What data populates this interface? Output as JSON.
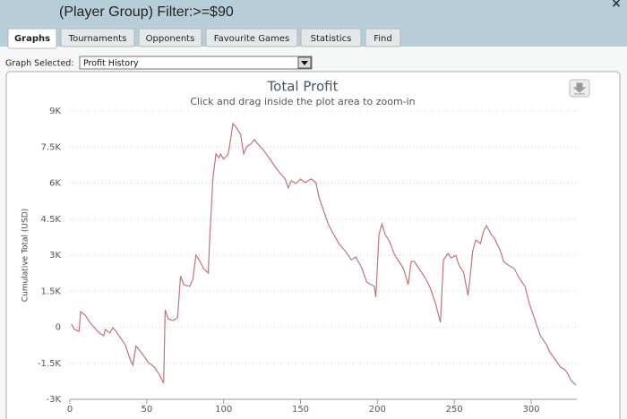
{
  "header": {
    "title": "(Player Group) Filter:>=$90",
    "close": "×"
  },
  "tabs": [
    "Graphs",
    "Tournaments",
    "Opponents",
    "Favourite Games",
    "Statistics",
    "Find"
  ],
  "active_tab": 0,
  "graph_selector": {
    "label": "Graph Selected:",
    "value": "Profit History"
  },
  "chart_data": {
    "type": "line",
    "title": "Total Profit",
    "subtitle": "Click and drag inside the plot area to zoom-in",
    "y_label": "Cumulative Total (USD)",
    "color": "#c0747b",
    "grid": true,
    "xlim": [
      0,
      330
    ],
    "xticks": [
      0,
      50,
      100,
      150,
      200,
      250,
      300
    ],
    "ylim": [
      -3000,
      9000
    ],
    "yticks": [
      {
        "value": -3000,
        "label": "-3K"
      },
      {
        "value": -1500,
        "label": "-1.5K"
      },
      0,
      {
        "value": 1500,
        "label": "1.5K"
      },
      {
        "value": 3000,
        "label": "3K"
      },
      {
        "value": 4500,
        "label": "4.5K"
      },
      {
        "value": 6000,
        "label": "6K"
      },
      {
        "value": 7500,
        "label": "7.5K"
      },
      {
        "value": 9000,
        "label": "9K"
      }
    ],
    "x": [
      1,
      3,
      6,
      7,
      10,
      13,
      16,
      19,
      22,
      23,
      26,
      28,
      30,
      36,
      39,
      41,
      43,
      47,
      51,
      55,
      58,
      61,
      62,
      64,
      67,
      70,
      72,
      74,
      78,
      80,
      82,
      84,
      87,
      90,
      91,
      92,
      93,
      95,
      97,
      98,
      100,
      103,
      105,
      106,
      108,
      111,
      113,
      115,
      118,
      120,
      122,
      126,
      129,
      135,
      140,
      142,
      144,
      147,
      150,
      153,
      157,
      160,
      162,
      164,
      168,
      171,
      175,
      179,
      183,
      186,
      190,
      193,
      198,
      199,
      201,
      203,
      205,
      208,
      211,
      214,
      217,
      220,
      222,
      224,
      227,
      231,
      234,
      238,
      241,
      243,
      246,
      248,
      251,
      253,
      256,
      259,
      262,
      264,
      267,
      269,
      271,
      274,
      276,
      280,
      282,
      285,
      289,
      292,
      296,
      299,
      303,
      306,
      310,
      312,
      315,
      317,
      319,
      322,
      324,
      326,
      329
    ],
    "values": [
      130,
      -90,
      -170,
      650,
      500,
      200,
      -20,
      -240,
      -350,
      -90,
      -240,
      -20,
      -170,
      -730,
      -1290,
      -1580,
      -780,
      -1100,
      -1470,
      -1660,
      -1960,
      -2330,
      730,
      350,
      280,
      390,
      2140,
      1770,
      1700,
      2000,
      3000,
      2810,
      2440,
      2250,
      3740,
      4860,
      6170,
      7210,
      7060,
      7210,
      6990,
      7210,
      8030,
      8480,
      8330,
      8030,
      7210,
      7510,
      7650,
      7810,
      7650,
      7360,
      7100,
      6540,
      6170,
      5800,
      6100,
      5980,
      6170,
      6020,
      6170,
      6020,
      5420,
      5050,
      4300,
      3930,
      3480,
      3180,
      2810,
      2920,
      2440,
      1880,
      1700,
      1250,
      3860,
      4300,
      3860,
      3560,
      3040,
      2740,
      2440,
      1770,
      2740,
      2740,
      2440,
      2070,
      1700,
      950,
      200,
      2810,
      3070,
      2880,
      2990,
      2590,
      2290,
      1320,
      3180,
      3630,
      3480,
      4000,
      4230,
      3860,
      3710,
      3180,
      2740,
      2590,
      2440,
      2070,
      1700,
      950,
      200,
      -350,
      -730,
      -1020,
      -1290,
      -1470,
      -1660,
      -1770,
      -1960,
      -2220,
      -2400
    ]
  }
}
